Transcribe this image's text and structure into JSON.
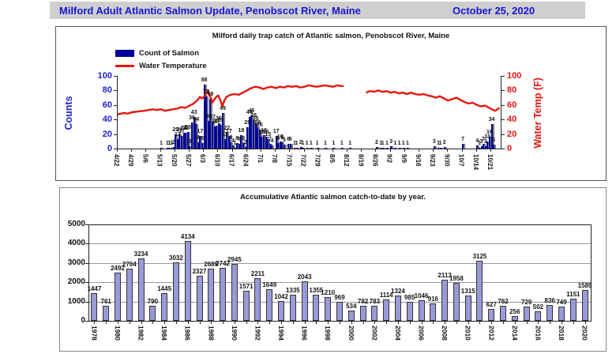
{
  "header": {
    "title": "Milford Adult Atlantic Salmon Update, Penobscot River, Maine",
    "date": "October 25, 2020"
  },
  "colors": {
    "header_text": "#1616d6",
    "header_bg": "#cfcfcf",
    "salmon_bar": "#00009c",
    "bar_shadow": "#7e7e7e",
    "temp_line": "#e8140f",
    "counts_axis": "#2222cc",
    "temp_axis": "#e8140f",
    "year_bar_fill": "#9a9ad8",
    "year_bar_border": "#333333",
    "gridline": "#999999"
  },
  "chart_data": [
    {
      "type": "bar+line",
      "title": "Milford daily trap catch of Atlantic salmon, Penobscot River, Maine",
      "legend": {
        "bars": "Count of Salmon",
        "line": "Water Temperature"
      },
      "left_axis": {
        "label": "Counts",
        "ticks": [
          0,
          20,
          40,
          60,
          80,
          100
        ]
      },
      "right_axis": {
        "label": "Water Temp (F)",
        "ticks": [
          0,
          20,
          40,
          60,
          80,
          100
        ]
      },
      "x_ticks": [
        "4/22",
        "4/29",
        "5/6",
        "5/13",
        "5/20",
        "5/27",
        "6/3",
        "6/10",
        "6/17",
        "6/24",
        "7/1",
        "7/8",
        "7/15",
        "7/22",
        "7/29",
        "8/5",
        "8/12",
        "8/19",
        "8/26",
        "9/2",
        "9/9",
        "9/16",
        "9/23",
        "9/30",
        "10/7",
        "10/14",
        "10/21"
      ],
      "days_total": 187,
      "salmon_bars": [
        [
          21,
          1
        ],
        [
          24,
          1
        ],
        [
          25,
          1
        ],
        [
          26,
          1
        ],
        [
          27,
          2
        ],
        [
          28,
          20
        ],
        [
          29,
          13
        ],
        [
          30,
          20
        ],
        [
          31,
          17
        ],
        [
          32,
          22
        ],
        [
          33,
          22
        ],
        [
          34,
          23
        ],
        [
          35,
          3
        ],
        [
          36,
          36
        ],
        [
          37,
          43
        ],
        [
          38,
          34
        ],
        [
          39,
          9
        ],
        [
          40,
          17
        ],
        [
          41,
          8
        ],
        [
          42,
          88
        ],
        [
          43,
          72
        ],
        [
          44,
          38
        ],
        [
          45,
          69
        ],
        [
          46,
          37
        ],
        [
          47,
          30
        ],
        [
          48,
          31
        ],
        [
          49,
          35
        ],
        [
          50,
          33
        ],
        [
          51,
          49
        ],
        [
          52,
          13
        ],
        [
          53,
          22
        ],
        [
          54,
          17
        ],
        [
          55,
          9
        ],
        [
          56,
          4
        ],
        [
          57,
          1
        ],
        [
          58,
          8
        ],
        [
          59,
          6
        ],
        [
          60,
          18
        ],
        [
          61,
          8
        ],
        [
          62,
          2
        ],
        [
          63,
          29
        ],
        [
          64,
          44
        ],
        [
          65,
          46
        ],
        [
          66,
          39
        ],
        [
          67,
          35
        ],
        [
          68,
          29
        ],
        [
          69,
          26
        ],
        [
          70,
          16
        ],
        [
          71,
          18
        ],
        [
          72,
          16
        ],
        [
          73,
          13
        ],
        [
          74,
          7
        ],
        [
          75,
          4
        ],
        [
          77,
          17
        ],
        [
          78,
          8
        ],
        [
          79,
          10
        ],
        [
          80,
          9
        ],
        [
          81,
          5
        ],
        [
          83,
          6
        ],
        [
          84,
          6
        ],
        [
          86,
          1
        ],
        [
          87,
          1
        ],
        [
          89,
          2
        ],
        [
          90,
          1
        ],
        [
          92,
          1
        ],
        [
          94,
          1
        ],
        [
          97,
          1
        ],
        [
          101,
          1
        ],
        [
          105,
          1
        ],
        [
          109,
          1
        ],
        [
          113,
          1
        ],
        [
          126,
          2
        ],
        [
          128,
          1
        ],
        [
          129,
          1
        ],
        [
          131,
          1
        ],
        [
          133,
          3
        ],
        [
          135,
          1
        ],
        [
          137,
          1
        ],
        [
          139,
          1
        ],
        [
          141,
          1
        ],
        [
          154,
          3
        ],
        [
          156,
          1
        ],
        [
          157,
          1
        ],
        [
          159,
          2
        ],
        [
          168,
          7
        ],
        [
          175,
          4
        ],
        [
          176,
          1
        ],
        [
          177,
          3
        ],
        [
          178,
          7
        ],
        [
          179,
          3
        ],
        [
          180,
          10
        ],
        [
          181,
          16
        ],
        [
          182,
          34
        ],
        [
          183,
          5
        ]
      ],
      "temperature_segments": [
        [
          [
            0,
            47
          ],
          [
            3,
            49
          ],
          [
            5,
            48
          ],
          [
            7,
            50
          ],
          [
            10,
            51
          ],
          [
            13,
            52
          ],
          [
            15,
            53
          ],
          [
            17,
            54
          ],
          [
            19,
            53
          ],
          [
            21,
            54
          ],
          [
            23,
            52
          ],
          [
            25,
            53
          ],
          [
            27,
            54
          ],
          [
            29,
            55
          ],
          [
            31,
            57
          ],
          [
            33,
            56
          ],
          [
            35,
            59
          ],
          [
            37,
            62
          ],
          [
            39,
            67
          ],
          [
            40,
            71
          ],
          [
            41,
            69
          ],
          [
            42,
            71
          ],
          [
            43,
            76
          ],
          [
            44,
            79
          ],
          [
            45,
            73
          ],
          [
            46,
            63
          ],
          [
            47,
            67
          ],
          [
            48,
            71
          ],
          [
            49,
            73
          ],
          [
            50,
            67
          ],
          [
            51,
            58
          ],
          [
            52,
            66
          ],
          [
            53,
            71
          ],
          [
            55,
            74
          ],
          [
            57,
            75
          ],
          [
            59,
            74
          ],
          [
            61,
            77
          ],
          [
            63,
            80
          ],
          [
            65,
            83
          ],
          [
            67,
            85
          ],
          [
            69,
            84
          ],
          [
            71,
            82
          ],
          [
            73,
            84
          ],
          [
            75,
            85
          ],
          [
            77,
            83
          ],
          [
            79,
            85
          ],
          [
            81,
            84
          ],
          [
            83,
            86
          ],
          [
            85,
            85
          ],
          [
            87,
            86
          ],
          [
            89,
            84
          ],
          [
            91,
            85
          ],
          [
            93,
            87
          ],
          [
            95,
            86
          ],
          [
            97,
            85
          ],
          [
            99,
            86
          ],
          [
            101,
            87
          ],
          [
            103,
            86
          ],
          [
            105,
            85
          ],
          [
            107,
            87
          ],
          [
            109,
            86
          ],
          [
            110,
            86
          ]
        ],
        [
          [
            121,
            77
          ],
          [
            123,
            79
          ],
          [
            125,
            78
          ],
          [
            127,
            80
          ],
          [
            129,
            78
          ],
          [
            131,
            79
          ],
          [
            133,
            77
          ],
          [
            135,
            78
          ],
          [
            137,
            76
          ],
          [
            139,
            77
          ],
          [
            141,
            75
          ],
          [
            143,
            77
          ],
          [
            145,
            75
          ],
          [
            147,
            74
          ],
          [
            149,
            75
          ],
          [
            151,
            73
          ],
          [
            153,
            72
          ],
          [
            155,
            70
          ],
          [
            157,
            72
          ],
          [
            159,
            69
          ],
          [
            161,
            66
          ],
          [
            163,
            68
          ],
          [
            165,
            70
          ],
          [
            167,
            67
          ],
          [
            169,
            64
          ],
          [
            171,
            62
          ],
          [
            173,
            63
          ],
          [
            175,
            60
          ],
          [
            177,
            58
          ],
          [
            179,
            59
          ],
          [
            181,
            56
          ],
          [
            183,
            53
          ],
          [
            184,
            52
          ],
          [
            185,
            54
          ],
          [
            186,
            56
          ]
        ]
      ]
    },
    {
      "type": "bar",
      "title": "Accumulative Atlantic salmon catch-to-date by year.",
      "years": [
        1978,
        1979,
        1980,
        1981,
        1982,
        1983,
        1984,
        1985,
        1986,
        1987,
        1988,
        1989,
        1990,
        1991,
        1992,
        1993,
        1994,
        1995,
        1996,
        1997,
        1998,
        1999,
        2000,
        2001,
        2002,
        2003,
        2004,
        2005,
        2006,
        2007,
        2008,
        2009,
        2010,
        2011,
        2012,
        2013,
        2014,
        2015,
        2016,
        2017,
        2018,
        2019,
        2020
      ],
      "values": [
        1447,
        761,
        2492,
        2704,
        3234,
        790,
        1445,
        3032,
        4134,
        2327,
        2689,
        2742,
        2945,
        1571,
        2211,
        1649,
        1042,
        1335,
        2043,
        1355,
        1210,
        969,
        534,
        782,
        783,
        1114,
        1324,
        985,
        1046,
        916,
        2113,
        1958,
        1315,
        3125,
        627,
        762,
        256,
        729,
        502,
        836,
        749,
        1151,
        1589
      ],
      "ylim": [
        0,
        5000
      ],
      "yticks": [
        0,
        1000,
        2000,
        3000,
        4000,
        5000
      ]
    }
  ]
}
